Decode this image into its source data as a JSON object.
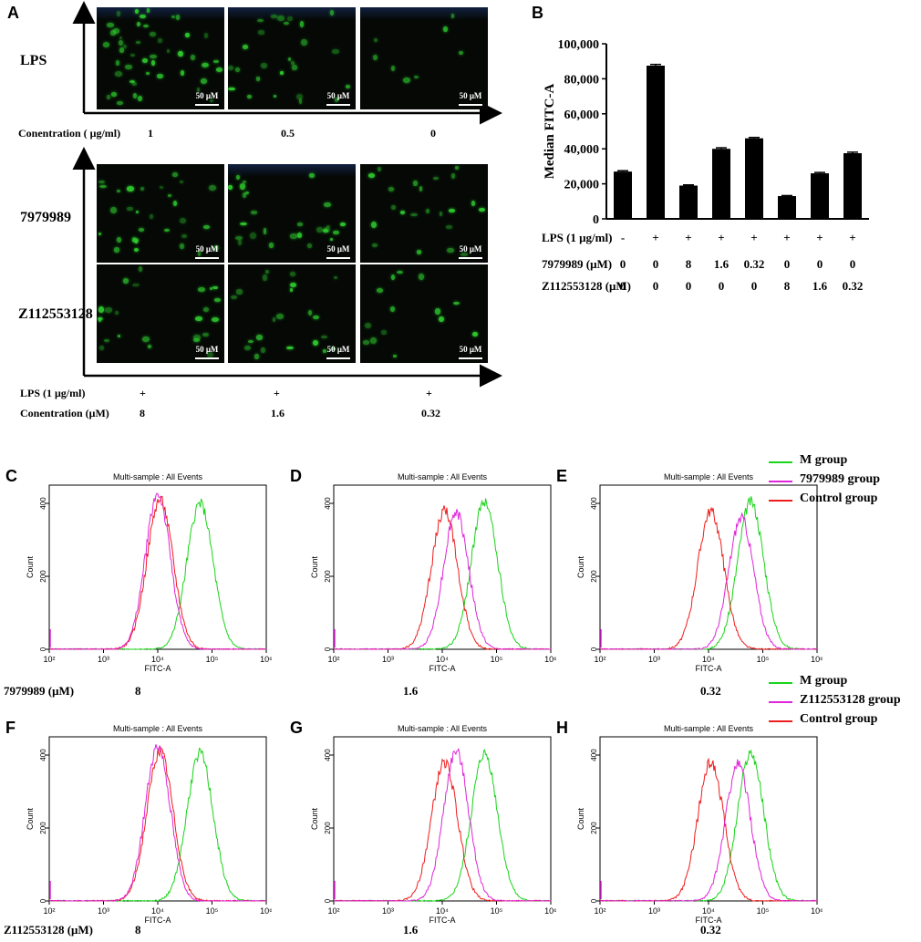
{
  "panels": {
    "A": "A",
    "B": "B",
    "C": "C",
    "D": "D",
    "E": "E",
    "F": "F",
    "G": "G",
    "H": "H"
  },
  "panel_a": {
    "row_labels": [
      "LPS",
      "7979989",
      "Z112553128"
    ],
    "scale_bar": "50 μM",
    "top_axis": {
      "label": "Conentration ( μg/ml)",
      "values": [
        "1",
        "0.5",
        "0"
      ]
    },
    "bottom_axis": {
      "lps_label": "LPS (1 μg/ml)",
      "lps_values": [
        "+",
        "+",
        "+"
      ],
      "conc_label": "Conentration (μM)",
      "conc_values": [
        "8",
        "1.6",
        "0.32"
      ]
    },
    "cell_color": "#2fd12f",
    "background_color": "#050805"
  },
  "chart_data": [
    {
      "panel": "B",
      "type": "bar",
      "title": "",
      "ylabel": "Median FITC-A",
      "xlabel": "",
      "ylim": [
        0,
        100000
      ],
      "yticks": [
        "0",
        "20,000",
        "40,000",
        "60,000",
        "80,000",
        "100,000"
      ],
      "values": [
        27000,
        87500,
        19000,
        40000,
        46000,
        13000,
        26000,
        37500
      ],
      "errors": [
        500,
        700,
        400,
        600,
        500,
        300,
        500,
        600
      ],
      "bar_color": "#000000",
      "condition_table": [
        {
          "label": "LPS (1 μg/ml)",
          "values": [
            "-",
            "+",
            "+",
            "+",
            "+",
            "+",
            "+",
            "+"
          ]
        },
        {
          "label": "7979989 (μM)",
          "values": [
            "0",
            "0",
            "8",
            "1.6",
            "0.32",
            "0",
            "0",
            "0"
          ]
        },
        {
          "label": "Z112553128 (μM)",
          "values": [
            "0",
            "0",
            "0",
            "0",
            "0",
            "8",
            "1.6",
            "0.32"
          ]
        }
      ]
    },
    {
      "panel": "C-H",
      "type": "line",
      "title": "Multi-sample : All Events",
      "xlabel": "FITC-A",
      "ylabel": "Count",
      "x_scale": "log",
      "xlim": [
        100,
        1000000
      ],
      "ylim": [
        0,
        450
      ],
      "x_ticks": [
        "10²",
        "10³",
        "10⁴",
        "10⁵",
        "10⁶"
      ],
      "y_ticks": [
        "0",
        "200",
        "400"
      ],
      "histograms": [
        {
          "panel": "C",
          "treatment": "7979989 (μM)",
          "conc": "8",
          "series": [
            {
              "name": "M group",
              "color": "#19d419",
              "peak_x": 60000,
              "peak_y": 400,
              "width": 0.24
            },
            {
              "name": "7979989 group",
              "color": "#e024d8",
              "peak_x": 10000,
              "peak_y": 425,
              "width": 0.23
            },
            {
              "name": "Control group",
              "color": "#ee1c1c",
              "peak_x": 11000,
              "peak_y": 410,
              "width": 0.24
            }
          ]
        },
        {
          "panel": "D",
          "treatment": "7979989 (μM)",
          "conc": "1.6",
          "series": [
            {
              "name": "M group",
              "color": "#19d419",
              "peak_x": 60000,
              "peak_y": 405,
              "width": 0.24
            },
            {
              "name": "7979989 group",
              "color": "#e024d8",
              "peak_x": 18000,
              "peak_y": 375,
              "width": 0.23
            },
            {
              "name": "Control group",
              "color": "#ee1c1c",
              "peak_x": 11000,
              "peak_y": 380,
              "width": 0.24
            }
          ]
        },
        {
          "panel": "E",
          "treatment": "7979989 (μM)",
          "conc": "0.32",
          "series": [
            {
              "name": "M group",
              "color": "#19d419",
              "peak_x": 60000,
              "peak_y": 405,
              "width": 0.24
            },
            {
              "name": "7979989 group",
              "color": "#e024d8",
              "peak_x": 40000,
              "peak_y": 360,
              "width": 0.23
            },
            {
              "name": "Control group",
              "color": "#ee1c1c",
              "peak_x": 11000,
              "peak_y": 380,
              "width": 0.24
            }
          ]
        },
        {
          "panel": "F",
          "treatment": "Z112553128 (μM)",
          "conc": "8",
          "series": [
            {
              "name": "M group",
              "color": "#19d419",
              "peak_x": 60000,
              "peak_y": 405,
              "width": 0.24
            },
            {
              "name": "Z112553128 group",
              "color": "#e024d8",
              "peak_x": 10000,
              "peak_y": 425,
              "width": 0.23
            },
            {
              "name": "Control group",
              "color": "#ee1c1c",
              "peak_x": 11000,
              "peak_y": 410,
              "width": 0.24
            }
          ]
        },
        {
          "panel": "G",
          "treatment": "Z112553128 (μM)",
          "conc": "1.6",
          "series": [
            {
              "name": "M group",
              "color": "#19d419",
              "peak_x": 60000,
              "peak_y": 405,
              "width": 0.24
            },
            {
              "name": "Z112553128 group",
              "color": "#e024d8",
              "peak_x": 18000,
              "peak_y": 410,
              "width": 0.23
            },
            {
              "name": "Control group",
              "color": "#ee1c1c",
              "peak_x": 11000,
              "peak_y": 380,
              "width": 0.24
            }
          ]
        },
        {
          "panel": "H",
          "treatment": "Z112553128 (μM)",
          "conc": "0.32",
          "series": [
            {
              "name": "M group",
              "color": "#19d419",
              "peak_x": 60000,
              "peak_y": 405,
              "width": 0.24
            },
            {
              "name": "Z112553128 group",
              "color": "#e024d8",
              "peak_x": 35000,
              "peak_y": 375,
              "width": 0.23
            },
            {
              "name": "Control group",
              "color": "#ee1c1c",
              "peak_x": 11000,
              "peak_y": 380,
              "width": 0.24
            }
          ]
        }
      ]
    }
  ],
  "legend_top": [
    {
      "name": "M group",
      "color": "#19d419"
    },
    {
      "name": "7979989 group",
      "color": "#e024d8"
    },
    {
      "name": "Control group",
      "color": "#ee1c1c"
    }
  ],
  "legend_bottom": [
    {
      "name": "M group",
      "color": "#19d419"
    },
    {
      "name": "Z112553128 group",
      "color": "#e024d8"
    },
    {
      "name": "Control group",
      "color": "#ee1c1c"
    }
  ],
  "row_treatment_labels": {
    "top": {
      "label": "7979989 (μM)",
      "values": [
        "8",
        "1.6",
        "0.32"
      ]
    },
    "bottom": {
      "label": "Z112553128 (μM)",
      "values": [
        "8",
        "1.6",
        "0.32"
      ]
    }
  }
}
